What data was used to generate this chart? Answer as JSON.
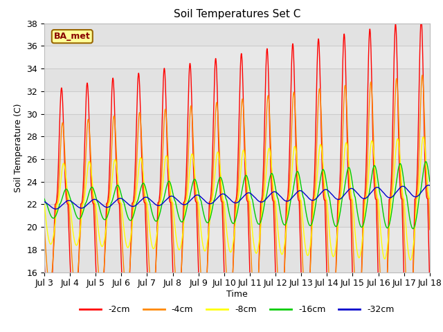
{
  "title": "Soil Temperatures Set C",
  "xlabel": "Time",
  "ylabel": "Soil Temperature (C)",
  "ylim": [
    16,
    38
  ],
  "yticks": [
    16,
    18,
    20,
    22,
    24,
    26,
    28,
    30,
    32,
    34,
    36,
    38
  ],
  "x_tick_days": [
    3,
    4,
    5,
    6,
    7,
    8,
    9,
    10,
    11,
    12,
    13,
    14,
    15,
    16,
    17,
    18
  ],
  "series_colors": [
    "#ff0000",
    "#ff8800",
    "#ffff00",
    "#00cc00",
    "#0000cc"
  ],
  "series_labels": [
    "-2cm",
    "-4cm",
    "-8cm",
    "-16cm",
    "-32cm"
  ],
  "legend_label": "BA_met",
  "legend_bg": "#ffff99",
  "legend_border": "#996600",
  "plot_bg": "#e8e8e8",
  "title_fontsize": 11,
  "label_fontsize": 9,
  "tick_fontsize": 9
}
